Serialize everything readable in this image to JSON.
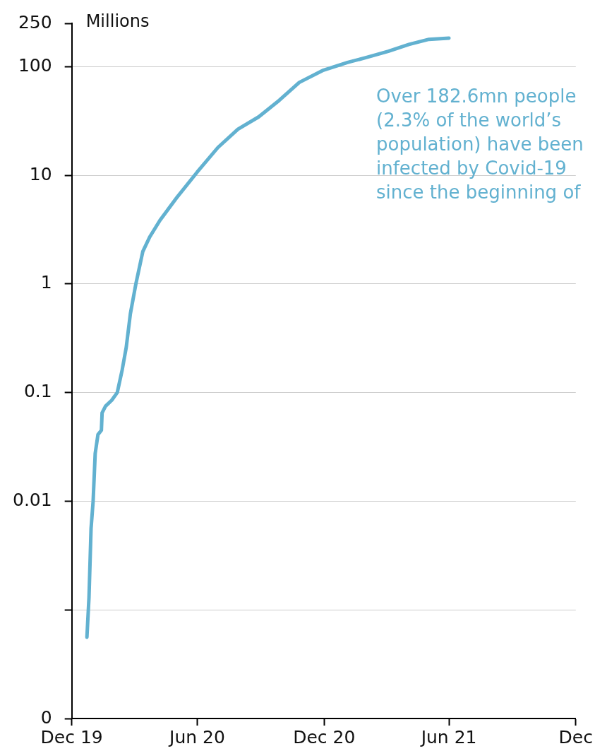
{
  "chart_data": {
    "type": "line",
    "ylabel": "Millions",
    "log": "y",
    "grid": "y",
    "legend": false,
    "marker": "none",
    "line_style": "solid",
    "x": [
      "2020-01-22",
      "2020-01-25",
      "2020-01-28",
      "2020-01-31",
      "2020-02-03",
      "2020-02-07",
      "2020-02-12",
      "2020-02-13",
      "2020-02-18",
      "2020-02-27",
      "2020-03-06",
      "2020-03-13",
      "2020-03-19",
      "2020-03-25",
      "2020-04-02",
      "2020-04-12",
      "2020-04-22",
      "2020-05-07",
      "2020-06-01",
      "2020-06-30",
      "2020-07-30",
      "2020-08-28",
      "2020-09-27",
      "2020-10-27",
      "2020-11-25",
      "2020-12-30",
      "2021-02-03",
      "2021-03-04",
      "2021-04-03",
      "2021-05-03",
      "2021-06-01",
      "2021-06-30"
    ],
    "series": [
      {
        "color": "#62b1d0",
        "values": [
          0.00056,
          0.0013,
          0.0056,
          0.01,
          0.0275,
          0.041,
          0.045,
          0.065,
          0.075,
          0.085,
          0.1,
          0.16,
          0.26,
          0.53,
          1.0,
          1.98,
          2.7,
          3.85,
          6.3,
          10.7,
          18,
          26.5,
          34.4,
          48.9,
          71.5,
          92.7,
          109,
          122,
          138,
          160,
          178,
          182.6
        ]
      }
    ],
    "xlim": [
      "2019-12-31",
      "2021-12-31"
    ],
    "xticks": [
      {
        "value": "2019-12-31",
        "label": "Dec 19"
      },
      {
        "value": "2020-06-30",
        "label": "Jun 20"
      },
      {
        "value": "2020-12-31",
        "label": "Dec 20"
      },
      {
        "value": "2021-06-30",
        "label": "Jun 21"
      },
      {
        "value": "2021-12-31",
        "label": "Dec"
      }
    ],
    "ylim": [
      0.0001,
      250
    ],
    "yticks": [
      {
        "value": 0.0001,
        "label": "0"
      },
      {
        "value": 0.001,
        "label": null
      },
      0.01,
      0.1,
      1,
      10,
      100,
      250
    ],
    "annotations": [
      "Over 182.6mn people (2.3% of the world’s population) have been infected by Covid-19 since the beginning of"
    ]
  }
}
